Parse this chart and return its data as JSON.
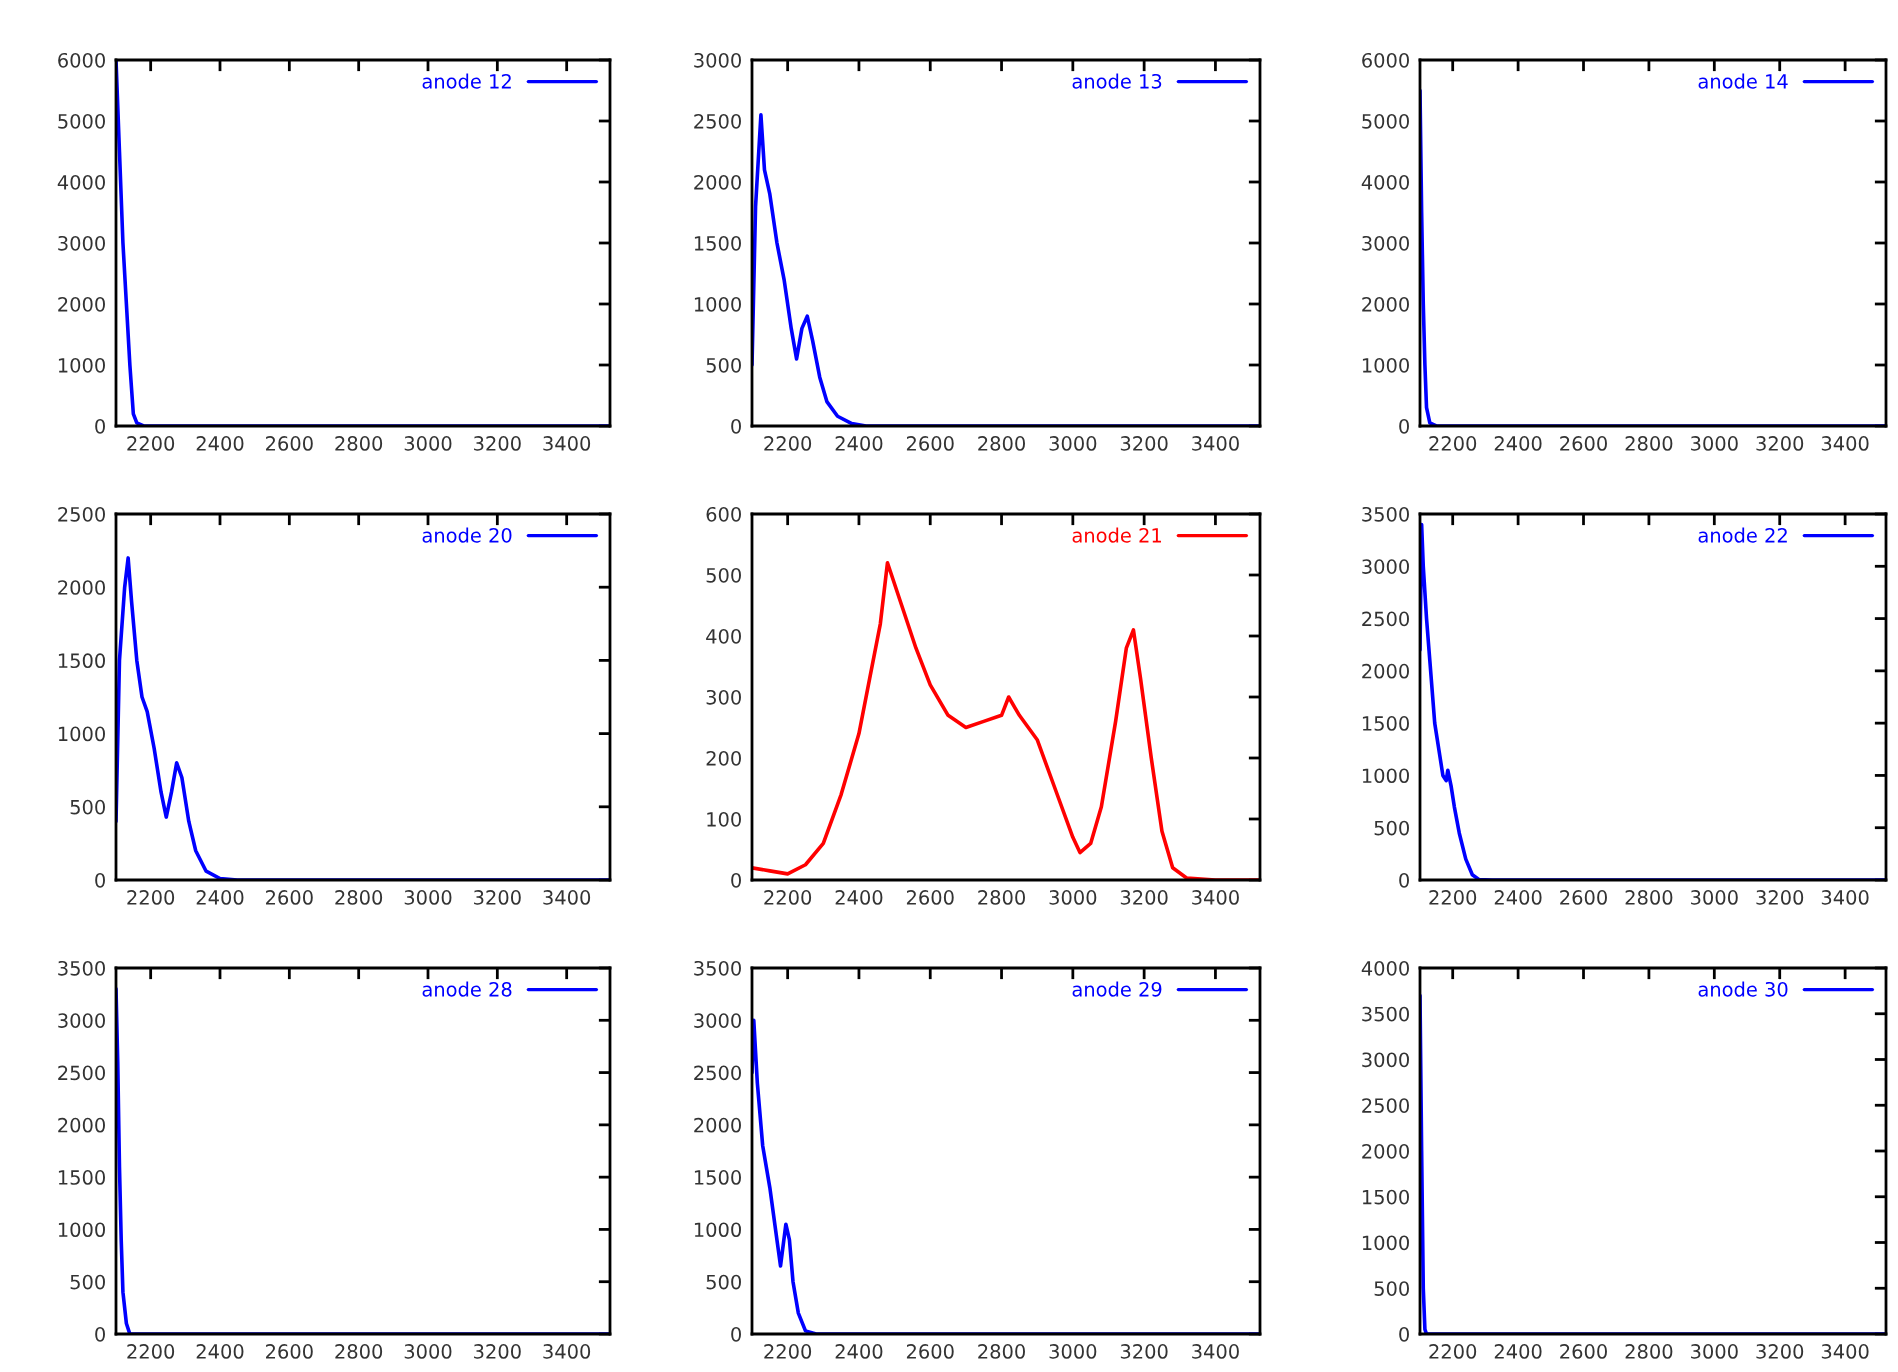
{
  "chart_data": [
    {
      "type": "line",
      "xlim": [
        2100,
        3525
      ],
      "xticks": [
        2200,
        2400,
        2600,
        2800,
        3000,
        3200,
        3400
      ],
      "ylim": [
        0,
        6000
      ],
      "yticks": [
        0,
        1000,
        2000,
        3000,
        4000,
        5000,
        6000
      ],
      "legend": "top right",
      "grid": false,
      "marker": "none",
      "line_style": "solid",
      "x": [
        2100,
        2110,
        2120,
        2130,
        2140,
        2150,
        2160,
        2180,
        3525
      ],
      "series": [
        {
          "name": "anode 12",
          "color": "#0000ff",
          "values": [
            6000,
            4500,
            3000,
            2000,
            1000,
            200,
            50,
            0,
            0
          ]
        }
      ]
    },
    {
      "type": "line",
      "xlim": [
        2100,
        3525
      ],
      "xticks": [
        2200,
        2400,
        2600,
        2800,
        3000,
        3200,
        3400
      ],
      "ylim": [
        0,
        3000
      ],
      "yticks": [
        0,
        500,
        1000,
        1500,
        2000,
        2500,
        3000
      ],
      "legend": "top right",
      "grid": false,
      "marker": "none",
      "line_style": "solid",
      "x": [
        2100,
        2110,
        2125,
        2135,
        2150,
        2170,
        2190,
        2210,
        2225,
        2240,
        2255,
        2270,
        2290,
        2310,
        2340,
        2380,
        2420,
        3525
      ],
      "series": [
        {
          "name": "anode 13",
          "color": "#0000ff",
          "values": [
            500,
            1800,
            2550,
            2100,
            1900,
            1500,
            1200,
            800,
            550,
            800,
            900,
            700,
            400,
            200,
            80,
            20,
            0,
            0
          ]
        }
      ]
    },
    {
      "type": "line",
      "xlim": [
        2100,
        3525
      ],
      "xticks": [
        2200,
        2400,
        2600,
        2800,
        3000,
        3200,
        3400
      ],
      "ylim": [
        0,
        6000
      ],
      "yticks": [
        0,
        1000,
        2000,
        3000,
        4000,
        5000,
        6000
      ],
      "legend": "top right",
      "grid": false,
      "marker": "none",
      "line_style": "solid",
      "x": [
        2100,
        2105,
        2110,
        2115,
        2120,
        2130,
        2150,
        3525
      ],
      "series": [
        {
          "name": "anode 14",
          "color": "#0000ff",
          "values": [
            5500,
            3500,
            2000,
            1000,
            300,
            50,
            0,
            0
          ]
        }
      ]
    },
    {
      "type": "line",
      "xlim": [
        2100,
        3525
      ],
      "xticks": [
        2200,
        2400,
        2600,
        2800,
        3000,
        3200,
        3400
      ],
      "ylim": [
        0,
        2500
      ],
      "yticks": [
        0,
        500,
        1000,
        1500,
        2000,
        2500
      ],
      "legend": "top right",
      "grid": false,
      "marker": "none",
      "line_style": "solid",
      "x": [
        2100,
        2110,
        2125,
        2135,
        2145,
        2160,
        2175,
        2190,
        2210,
        2230,
        2245,
        2260,
        2275,
        2290,
        2310,
        2330,
        2360,
        2400,
        2450,
        3525
      ],
      "series": [
        {
          "name": "anode 20",
          "color": "#0000ff",
          "values": [
            400,
            1500,
            2000,
            2200,
            1900,
            1500,
            1250,
            1150,
            900,
            600,
            430,
            600,
            800,
            700,
            400,
            200,
            60,
            10,
            0,
            0
          ]
        }
      ]
    },
    {
      "type": "line",
      "xlim": [
        2100,
        3525
      ],
      "xticks": [
        2200,
        2400,
        2600,
        2800,
        3000,
        3200,
        3400
      ],
      "ylim": [
        0,
        600
      ],
      "yticks": [
        0,
        100,
        200,
        300,
        400,
        500,
        600
      ],
      "legend": "top right",
      "grid": false,
      "marker": "none",
      "line_style": "solid",
      "x": [
        2100,
        2150,
        2200,
        2250,
        2300,
        2350,
        2400,
        2430,
        2460,
        2480,
        2520,
        2560,
        2600,
        2650,
        2700,
        2750,
        2800,
        2820,
        2850,
        2900,
        2950,
        3000,
        3020,
        3050,
        3080,
        3120,
        3150,
        3170,
        3190,
        3220,
        3250,
        3280,
        3320,
        3400,
        3525
      ],
      "series": [
        {
          "name": "anode 21",
          "color": "#ff0000",
          "values": [
            20,
            15,
            10,
            25,
            60,
            140,
            240,
            330,
            420,
            520,
            450,
            380,
            320,
            270,
            250,
            260,
            270,
            300,
            270,
            230,
            150,
            70,
            45,
            60,
            120,
            260,
            380,
            410,
            330,
            200,
            80,
            20,
            3,
            0,
            0
          ]
        }
      ]
    },
    {
      "type": "line",
      "xlim": [
        2100,
        3525
      ],
      "xticks": [
        2200,
        2400,
        2600,
        2800,
        3000,
        3200,
        3400
      ],
      "ylim": [
        0,
        3500
      ],
      "yticks": [
        0,
        500,
        1000,
        1500,
        2000,
        2500,
        3000,
        3500
      ],
      "legend": "top right",
      "grid": false,
      "marker": "none",
      "line_style": "solid",
      "x": [
        2100,
        2105,
        2110,
        2120,
        2130,
        2145,
        2160,
        2170,
        2180,
        2185,
        2195,
        2205,
        2220,
        2240,
        2260,
        2280,
        2320,
        3525
      ],
      "series": [
        {
          "name": "anode 22",
          "color": "#0000ff",
          "values": [
            2200,
            3400,
            3000,
            2500,
            2100,
            1500,
            1200,
            1000,
            950,
            1050,
            900,
            700,
            450,
            200,
            50,
            5,
            0,
            0
          ]
        }
      ]
    },
    {
      "type": "line",
      "xlim": [
        2100,
        3525
      ],
      "xticks": [
        2200,
        2400,
        2600,
        2800,
        3000,
        3200,
        3400
      ],
      "ylim": [
        0,
        3500
      ],
      "yticks": [
        0,
        500,
        1000,
        1500,
        2000,
        2500,
        3000,
        3500
      ],
      "legend": "top right",
      "grid": false,
      "marker": "none",
      "line_style": "solid",
      "x": [
        2100,
        2105,
        2110,
        2115,
        2120,
        2130,
        2140,
        3525
      ],
      "series": [
        {
          "name": "anode 28",
          "color": "#0000ff",
          "values": [
            3300,
            2600,
            1600,
            900,
            400,
            100,
            0,
            0
          ]
        }
      ]
    },
    {
      "type": "line",
      "xlim": [
        2100,
        3525
      ],
      "xticks": [
        2200,
        2400,
        2600,
        2800,
        3000,
        3200,
        3400
      ],
      "ylim": [
        0,
        3500
      ],
      "yticks": [
        0,
        500,
        1000,
        1500,
        2000,
        2500,
        3000,
        3500
      ],
      "legend": "top right",
      "grid": false,
      "marker": "none",
      "line_style": "solid",
      "x": [
        2100,
        2105,
        2115,
        2130,
        2150,
        2170,
        2180,
        2195,
        2205,
        2215,
        2230,
        2250,
        2280,
        3525
      ],
      "series": [
        {
          "name": "anode 29",
          "color": "#0000ff",
          "values": [
            2500,
            3000,
            2400,
            1800,
            1400,
            900,
            650,
            1050,
            900,
            500,
            200,
            30,
            0,
            0
          ]
        }
      ]
    },
    {
      "type": "line",
      "xlim": [
        2100,
        3525
      ],
      "xticks": [
        2200,
        2400,
        2600,
        2800,
        3000,
        3200,
        3400
      ],
      "ylim": [
        0,
        4000
      ],
      "yticks": [
        0,
        500,
        1000,
        1500,
        2000,
        2500,
        3000,
        3500,
        4000
      ],
      "legend": "top right",
      "grid": false,
      "marker": "none",
      "line_style": "solid",
      "x": [
        2100,
        2105,
        2110,
        2115,
        2120,
        3525
      ],
      "series": [
        {
          "name": "anode 30",
          "color": "#0000ff",
          "values": [
            3700,
            2000,
            500,
            50,
            0,
            0
          ]
        }
      ]
    }
  ]
}
